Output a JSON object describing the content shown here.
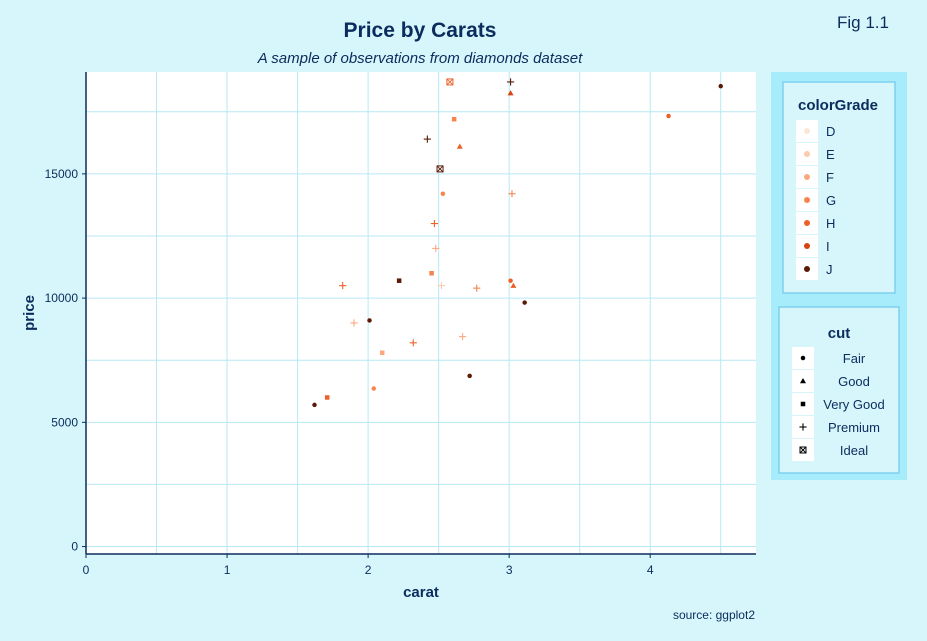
{
  "figure_tag": "Fig 1.1",
  "source": "source: ggplot2",
  "chart_data": {
    "type": "scatter",
    "title": "Price by Carats",
    "subtitle": "A sample of observations from diamonds dataset",
    "xlabel": "carat",
    "ylabel": "price",
    "xlim": [
      0,
      4.75
    ],
    "ylim": [
      -300,
      19100
    ],
    "x_ticks": [
      0,
      1,
      2,
      3,
      4
    ],
    "y_ticks": [
      0,
      5000,
      10000,
      15000
    ],
    "grid": true,
    "legend_position": "right",
    "color_legend": {
      "title": "colorGrade",
      "levels": [
        "D",
        "E",
        "F",
        "G",
        "H",
        "I",
        "J"
      ],
      "colors": [
        "#fde6d6",
        "#fccab0",
        "#fca77f",
        "#f7844f",
        "#ec6129",
        "#d84410",
        "#5a1a05"
      ]
    },
    "shape_legend": {
      "title": "cut",
      "levels": [
        "Fair",
        "Good",
        "Very Good",
        "Premium",
        "Ideal"
      ],
      "shapes": [
        "circle",
        "triangle",
        "square",
        "plus",
        "boxed-x"
      ]
    },
    "series": [
      {
        "x": 4.5,
        "y": 18530,
        "color": "J",
        "cut": "Fair"
      },
      {
        "x": 4.13,
        "y": 17330,
        "color": "H",
        "cut": "Fair"
      },
      {
        "x": 3.11,
        "y": 9820,
        "color": "J",
        "cut": "Fair"
      },
      {
        "x": 2.72,
        "y": 6870,
        "color": "J",
        "cut": "Fair"
      },
      {
        "x": 2.01,
        "y": 9100,
        "color": "J",
        "cut": "Fair"
      },
      {
        "x": 2.04,
        "y": 6360,
        "color": "G",
        "cut": "Fair"
      },
      {
        "x": 3.01,
        "y": 18250,
        "color": "I",
        "cut": "Good"
      },
      {
        "x": 3.01,
        "y": 18700,
        "color": "J",
        "cut": "Premium"
      },
      {
        "x": 3.02,
        "y": 14200,
        "color": "G",
        "cut": "Premium"
      },
      {
        "x": 3.01,
        "y": 10700,
        "color": "H",
        "cut": "Fair"
      },
      {
        "x": 3.03,
        "y": 10500,
        "color": "H",
        "cut": "Good"
      },
      {
        "x": 2.77,
        "y": 10400,
        "color": "G",
        "cut": "Premium"
      },
      {
        "x": 2.67,
        "y": 8450,
        "color": "F",
        "cut": "Premium"
      },
      {
        "x": 2.52,
        "y": 10500,
        "color": "E",
        "cut": "Premium"
      },
      {
        "x": 2.32,
        "y": 8200,
        "color": "H",
        "cut": "Premium"
      },
      {
        "x": 2.1,
        "y": 7800,
        "color": "F",
        "cut": "Very Good"
      },
      {
        "x": 2.51,
        "y": 15200,
        "color": "J",
        "cut": "Ideal"
      },
      {
        "x": 2.42,
        "y": 16400,
        "color": "J",
        "cut": "Premium"
      },
      {
        "x": 2.61,
        "y": 17200,
        "color": "G",
        "cut": "Very Good"
      },
      {
        "x": 2.65,
        "y": 16100,
        "color": "H",
        "cut": "Good"
      },
      {
        "x": 2.58,
        "y": 18700,
        "color": "H",
        "cut": "Ideal"
      },
      {
        "x": 2.22,
        "y": 10700,
        "color": "J",
        "cut": "Very Good"
      },
      {
        "x": 2.47,
        "y": 13000,
        "color": "H",
        "cut": "Premium"
      },
      {
        "x": 2.53,
        "y": 14200,
        "color": "G",
        "cut": "Fair"
      },
      {
        "x": 2.48,
        "y": 12000,
        "color": "F",
        "cut": "Premium"
      },
      {
        "x": 2.45,
        "y": 11000,
        "color": "G",
        "cut": "Very Good"
      },
      {
        "x": 1.9,
        "y": 9000,
        "color": "F",
        "cut": "Premium"
      },
      {
        "x": 1.82,
        "y": 10500,
        "color": "H",
        "cut": "Premium"
      },
      {
        "x": 1.71,
        "y": 6000,
        "color": "H",
        "cut": "Very Good"
      },
      {
        "x": 1.62,
        "y": 5700,
        "color": "J",
        "cut": "Fair"
      }
    ]
  }
}
